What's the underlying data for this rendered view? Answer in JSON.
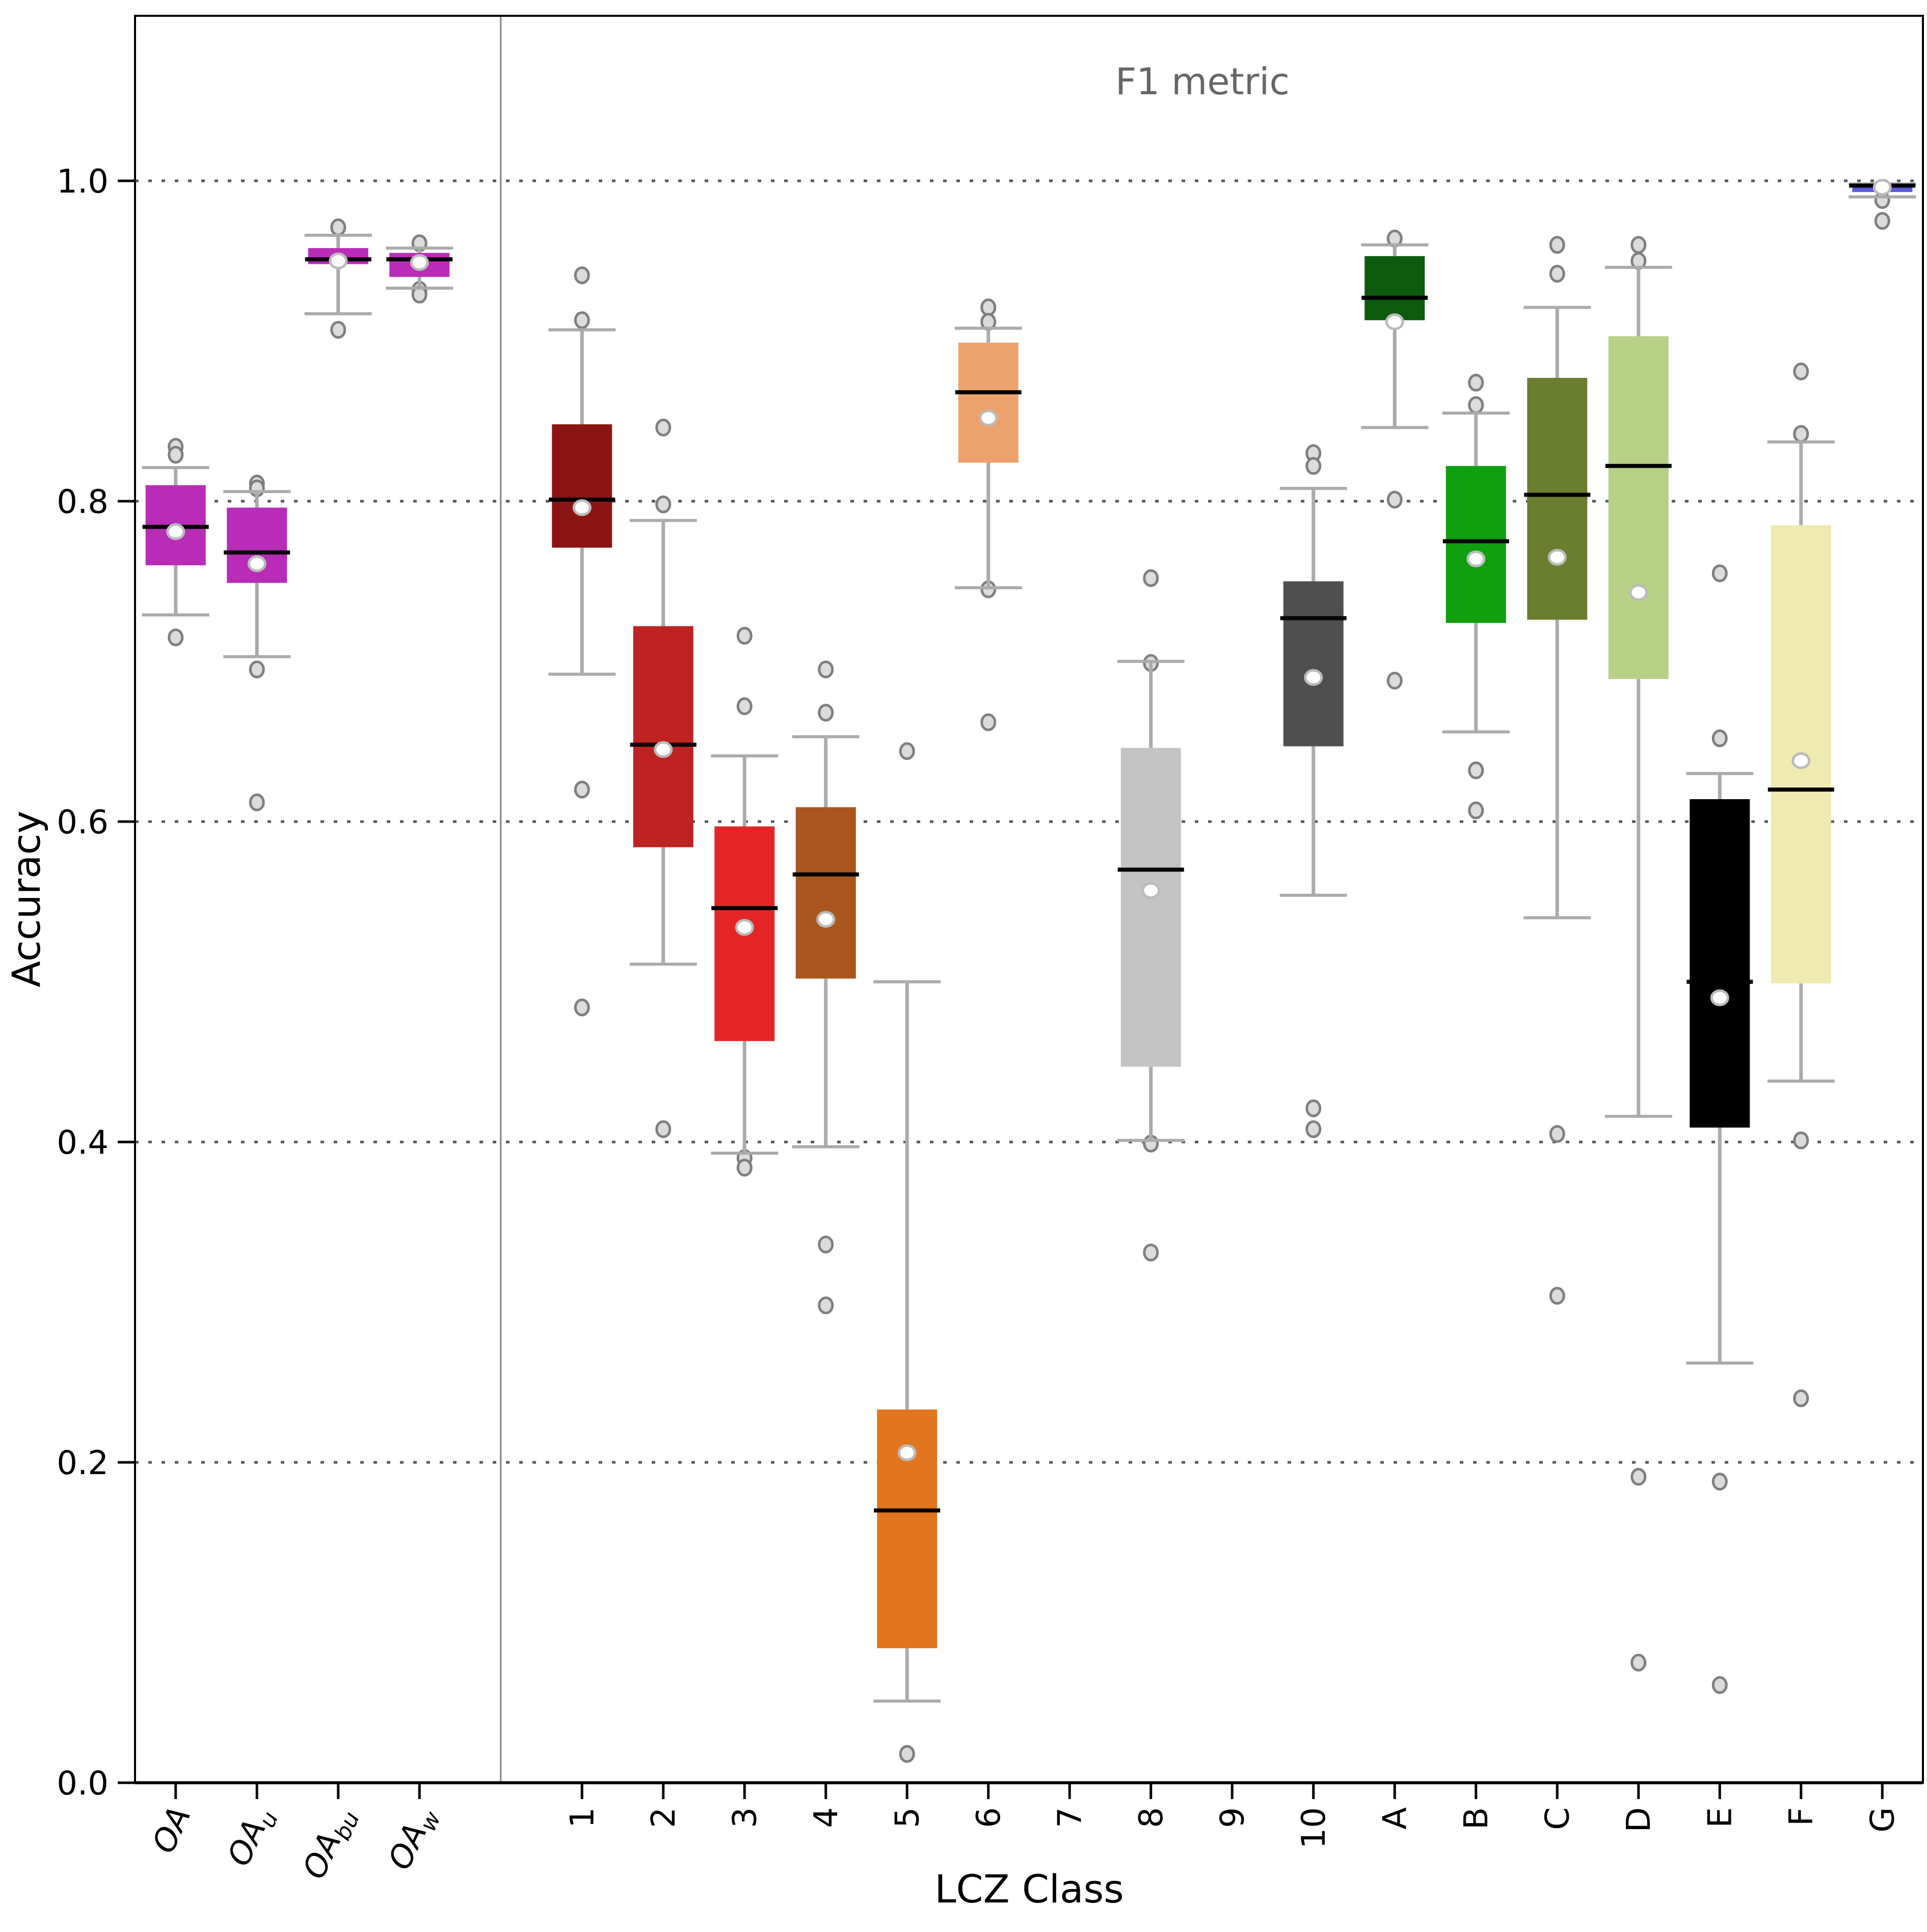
{
  "title": "F1 metric",
  "xlabel": "LCZ Class",
  "ylabel": "Accuracy",
  "colors": {
    "oa_magenta": "#b82cb8",
    "grid": "#555555",
    "whisker": "#ababab",
    "flier_edge": "#7f7f7f",
    "flier_fill": "#dcdcdc",
    "mean_fill": "#ffffff",
    "mean_edge": "#bbbbbb",
    "median": "#000000",
    "title_gray": "#666666",
    "separator": "#808080",
    "frame": "#000000"
  },
  "chart_data": {
    "type": "box",
    "title": "F1 metric",
    "xlabel": "LCZ Class",
    "ylabel": "Accuracy",
    "ylim": [
      0,
      1.103
    ],
    "yticks": [
      0.0,
      0.2,
      0.4,
      0.6,
      0.8,
      1.0
    ],
    "ytick_labels": [
      "0.0",
      "0.2",
      "0.4",
      "0.6",
      "0.8",
      "1.0"
    ],
    "grid": "dotted horizontal at 0.2,0.4,0.6,0.8,1.0",
    "separator_after_index": 3,
    "legend": "none",
    "note": "white dot = mean, black line = median, circles = outliers; categories 7 and 9 have no data",
    "categories": [
      {
        "label": "OA",
        "sub": "",
        "italic": true,
        "color": "#b82cb8",
        "stats": {
          "whislo": 0.729,
          "q1": 0.76,
          "med": 0.784,
          "mean": 0.781,
          "q3": 0.81,
          "whishi": 0.821
        },
        "fliers": [
          0.834,
          0.829,
          0.715
        ]
      },
      {
        "label": "OA",
        "sub": "u",
        "italic": true,
        "color": "#b82cb8",
        "stats": {
          "whislo": 0.703,
          "q1": 0.749,
          "med": 0.768,
          "mean": 0.761,
          "q3": 0.796,
          "whishi": 0.806
        },
        "fliers": [
          0.811,
          0.808,
          0.695,
          0.612
        ]
      },
      {
        "label": "OA",
        "sub": "bu",
        "italic": true,
        "color": "#b82cb8",
        "stats": {
          "whislo": 0.917,
          "q1": 0.948,
          "med": 0.951,
          "mean": 0.95,
          "q3": 0.958,
          "whishi": 0.966
        },
        "fliers": [
          0.971,
          0.907
        ]
      },
      {
        "label": "OA",
        "sub": "w",
        "italic": true,
        "color": "#b82cb8",
        "stats": {
          "whislo": 0.933,
          "q1": 0.94,
          "med": 0.951,
          "mean": 0.949,
          "q3": 0.955,
          "whishi": 0.958
        },
        "fliers": [
          0.961,
          0.932,
          0.929
        ]
      },
      {
        "label": "1",
        "sub": "",
        "italic": false,
        "color": "#8b1515",
        "stats": {
          "whislo": 0.692,
          "q1": 0.771,
          "med": 0.801,
          "mean": 0.796,
          "q3": 0.848,
          "whishi": 0.907
        },
        "fliers": [
          0.941,
          0.913,
          0.62,
          0.484
        ]
      },
      {
        "label": "2",
        "sub": "",
        "italic": false,
        "color": "#bf2222",
        "stats": {
          "whislo": 0.511,
          "q1": 0.584,
          "med": 0.648,
          "mean": 0.645,
          "q3": 0.722,
          "whishi": 0.788
        },
        "fliers": [
          0.846,
          0.798,
          0.408
        ]
      },
      {
        "label": "3",
        "sub": "",
        "italic": false,
        "color": "#e32527",
        "stats": {
          "whislo": 0.393,
          "q1": 0.463,
          "med": 0.546,
          "mean": 0.534,
          "q3": 0.597,
          "whishi": 0.641
        },
        "fliers": [
          0.716,
          0.672,
          0.39,
          0.384
        ]
      },
      {
        "label": "4",
        "sub": "",
        "italic": false,
        "color": "#a9571e",
        "stats": {
          "whislo": 0.397,
          "q1": 0.502,
          "med": 0.567,
          "mean": 0.539,
          "q3": 0.609,
          "whishi": 0.653
        },
        "fliers": [
          0.695,
          0.668,
          0.336,
          0.298
        ]
      },
      {
        "label": "5",
        "sub": "",
        "italic": false,
        "color": "#e2761e",
        "stats": {
          "whislo": 0.051,
          "q1": 0.084,
          "med": 0.17,
          "mean": 0.206,
          "q3": 0.233,
          "whishi": 0.5
        },
        "fliers": [
          0.644,
          0.018
        ]
      },
      {
        "label": "6",
        "sub": "",
        "italic": false,
        "color": "#eda26e",
        "stats": {
          "whislo": 0.746,
          "q1": 0.824,
          "med": 0.868,
          "mean": 0.852,
          "q3": 0.899,
          "whishi": 0.908
        },
        "fliers": [
          0.921,
          0.912,
          0.745,
          0.662
        ]
      },
      {
        "label": "7",
        "sub": "",
        "italic": false,
        "color": "#f5ee55",
        "stats": null,
        "fliers": []
      },
      {
        "label": "8",
        "sub": "",
        "italic": false,
        "color": "#c3c3c3",
        "stats": {
          "whislo": 0.401,
          "q1": 0.447,
          "med": 0.57,
          "mean": 0.557,
          "q3": 0.646,
          "whishi": 0.7
        },
        "fliers": [
          0.752,
          0.699,
          0.399,
          0.331
        ]
      },
      {
        "label": "9",
        "sub": "",
        "italic": false,
        "color": "#ffccaa",
        "stats": null,
        "fliers": []
      },
      {
        "label": "10",
        "sub": "",
        "italic": false,
        "color": "#4f4f4f",
        "stats": {
          "whislo": 0.554,
          "q1": 0.647,
          "med": 0.727,
          "mean": 0.69,
          "q3": 0.75,
          "whishi": 0.808
        },
        "fliers": [
          0.83,
          0.822,
          0.421,
          0.408
        ]
      },
      {
        "label": "A",
        "sub": "",
        "italic": false,
        "color": "#0e5a0e",
        "stats": {
          "whislo": 0.846,
          "q1": 0.913,
          "med": 0.927,
          "mean": 0.912,
          "q3": 0.953,
          "whishi": 0.96
        },
        "fliers": [
          0.964,
          0.801,
          0.688
        ]
      },
      {
        "label": "B",
        "sub": "",
        "italic": false,
        "color": "#0f9f0f",
        "stats": {
          "whislo": 0.656,
          "q1": 0.724,
          "med": 0.775,
          "mean": 0.764,
          "q3": 0.822,
          "whishi": 0.855
        },
        "fliers": [
          0.874,
          0.86,
          0.632,
          0.607
        ]
      },
      {
        "label": "C",
        "sub": "",
        "italic": false,
        "color": "#6b7d2f",
        "stats": {
          "whislo": 0.54,
          "q1": 0.726,
          "med": 0.804,
          "mean": 0.765,
          "q3": 0.877,
          "whishi": 0.921
        },
        "fliers": [
          0.96,
          0.942,
          0.405,
          0.304
        ]
      },
      {
        "label": "D",
        "sub": "",
        "italic": false,
        "color": "#b6d086",
        "stats": {
          "whislo": 0.416,
          "q1": 0.689,
          "med": 0.822,
          "mean": 0.743,
          "q3": 0.903,
          "whishi": 0.946
        },
        "fliers": [
          0.96,
          0.95,
          0.191,
          0.075
        ]
      },
      {
        "label": "E",
        "sub": "",
        "italic": false,
        "color": "#000000",
        "stats": {
          "whislo": 0.262,
          "q1": 0.409,
          "med": 0.5,
          "mean": 0.49,
          "q3": 0.614,
          "whishi": 0.63
        },
        "fliers": [
          0.755,
          0.652,
          0.188,
          0.061
        ]
      },
      {
        "label": "F",
        "sub": "",
        "italic": false,
        "color": "#efeab0",
        "stats": {
          "whislo": 0.438,
          "q1": 0.499,
          "med": 0.62,
          "mean": 0.638,
          "q3": 0.785,
          "whishi": 0.837
        },
        "fliers": [
          0.881,
          0.842,
          0.401,
          0.24
        ]
      },
      {
        "label": "G",
        "sub": "",
        "italic": false,
        "color": "#5c5cd9",
        "stats": {
          "whislo": 0.99,
          "q1": 0.993,
          "med": 0.997,
          "mean": 0.996,
          "q3": 0.998,
          "whishi": 0.998
        },
        "fliers": [
          0.988,
          0.975
        ]
      }
    ]
  }
}
